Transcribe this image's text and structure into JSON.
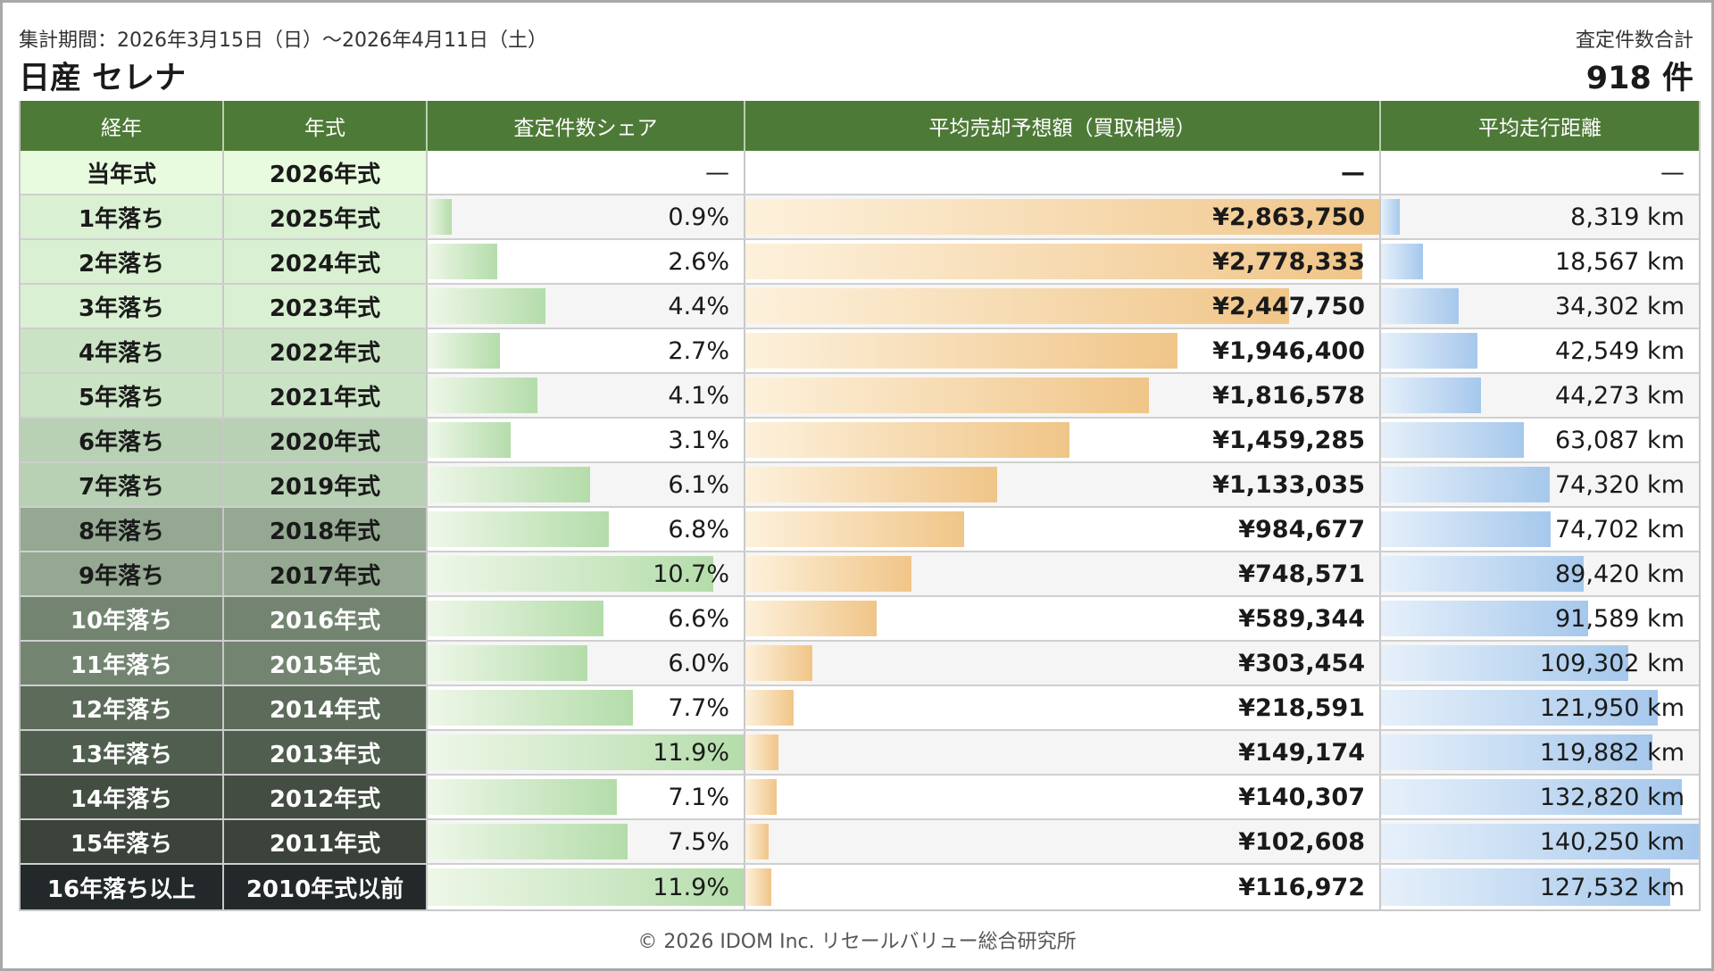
{
  "header": {
    "period": "集計期間：2026年3月15日（日）〜2026年4月11日（土）",
    "title": "日産 セレナ",
    "total_label": "査定件数合計",
    "total": "918 件"
  },
  "columns": [
    "経年",
    "年式",
    "査定件数シェア",
    "平均売却予想額（買取相場）",
    "平均走行距離"
  ],
  "footer": "© 2026 IDOM Inc. リセールバリュー総合研究所",
  "colors": {
    "header_bg": "#4e7a38",
    "share_bar": "#b4dcaa",
    "price_bar": "#f0c588",
    "mileage_bar": "#a6c8ec"
  },
  "chart_data": {
    "type": "table",
    "max": {
      "share": 11.9,
      "price": 2863750,
      "mileage": 140250
    },
    "rows": [
      {
        "age": "当年式",
        "year": "2026年式",
        "share": null,
        "share_label": "—",
        "price": null,
        "price_label": "—",
        "mileage": null,
        "mileage_label": "—"
      },
      {
        "age": "1年落ち",
        "year": "2025年式",
        "share": 0.9,
        "share_label": "0.9%",
        "price": 2863750,
        "price_label": "¥2,863,750",
        "mileage": 8319,
        "mileage_label": "8,319 km"
      },
      {
        "age": "2年落ち",
        "year": "2024年式",
        "share": 2.6,
        "share_label": "2.6%",
        "price": 2778333,
        "price_label": "¥2,778,333",
        "mileage": 18567,
        "mileage_label": "18,567 km"
      },
      {
        "age": "3年落ち",
        "year": "2023年式",
        "share": 4.4,
        "share_label": "4.4%",
        "price": 2447750,
        "price_label": "¥2,447,750",
        "mileage": 34302,
        "mileage_label": "34,302 km"
      },
      {
        "age": "4年落ち",
        "year": "2022年式",
        "share": 2.7,
        "share_label": "2.7%",
        "price": 1946400,
        "price_label": "¥1,946,400",
        "mileage": 42549,
        "mileage_label": "42,549 km"
      },
      {
        "age": "5年落ち",
        "year": "2021年式",
        "share": 4.1,
        "share_label": "4.1%",
        "price": 1816578,
        "price_label": "¥1,816,578",
        "mileage": 44273,
        "mileage_label": "44,273 km"
      },
      {
        "age": "6年落ち",
        "year": "2020年式",
        "share": 3.1,
        "share_label": "3.1%",
        "price": 1459285,
        "price_label": "¥1,459,285",
        "mileage": 63087,
        "mileage_label": "63,087 km"
      },
      {
        "age": "7年落ち",
        "year": "2019年式",
        "share": 6.1,
        "share_label": "6.1%",
        "price": 1133035,
        "price_label": "¥1,133,035",
        "mileage": 74320,
        "mileage_label": "74,320 km"
      },
      {
        "age": "8年落ち",
        "year": "2018年式",
        "share": 6.8,
        "share_label": "6.8%",
        "price": 984677,
        "price_label": "¥984,677",
        "mileage": 74702,
        "mileage_label": "74,702 km"
      },
      {
        "age": "9年落ち",
        "year": "2017年式",
        "share": 10.7,
        "share_label": "10.7%",
        "price": 748571,
        "price_label": "¥748,571",
        "mileage": 89420,
        "mileage_label": "89,420 km"
      },
      {
        "age": "10年落ち",
        "year": "2016年式",
        "share": 6.6,
        "share_label": "6.6%",
        "price": 589344,
        "price_label": "¥589,344",
        "mileage": 91589,
        "mileage_label": "91,589 km"
      },
      {
        "age": "11年落ち",
        "year": "2015年式",
        "share": 6.0,
        "share_label": "6.0%",
        "price": 303454,
        "price_label": "¥303,454",
        "mileage": 109302,
        "mileage_label": "109,302 km"
      },
      {
        "age": "12年落ち",
        "year": "2014年式",
        "share": 7.7,
        "share_label": "7.7%",
        "price": 218591,
        "price_label": "¥218,591",
        "mileage": 121950,
        "mileage_label": "121,950 km"
      },
      {
        "age": "13年落ち",
        "year": "2013年式",
        "share": 11.9,
        "share_label": "11.9%",
        "price": 149174,
        "price_label": "¥149,174",
        "mileage": 119882,
        "mileage_label": "119,882 km"
      },
      {
        "age": "14年落ち",
        "year": "2012年式",
        "share": 7.1,
        "share_label": "7.1%",
        "price": 140307,
        "price_label": "¥140,307",
        "mileage": 132820,
        "mileage_label": "132,820 km"
      },
      {
        "age": "15年落ち",
        "year": "2011年式",
        "share": 7.5,
        "share_label": "7.5%",
        "price": 102608,
        "price_label": "¥102,608",
        "mileage": 140250,
        "mileage_label": "140,250 km"
      },
      {
        "age": "16年落ち以上",
        "year": "2010年式以前",
        "share": 11.9,
        "share_label": "11.9%",
        "price": 116972,
        "price_label": "¥116,972",
        "mileage": 127532,
        "mileage_label": "127,532 km"
      }
    ]
  }
}
